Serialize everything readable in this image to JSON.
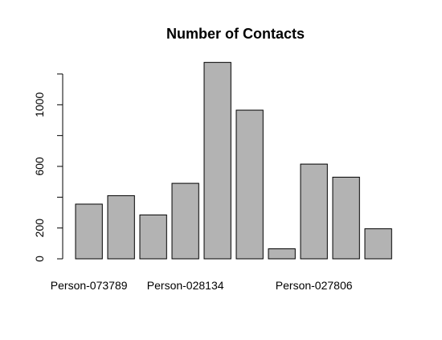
{
  "chart_data": {
    "type": "bar",
    "title": "Number of Contacts",
    "xlabel": "",
    "ylabel": "",
    "categories": [
      "Person-073789",
      "",
      "",
      "Person-028134",
      "",
      "",
      "",
      "Person-027806",
      "",
      ""
    ],
    "values": [
      355,
      410,
      285,
      490,
      1275,
      965,
      65,
      615,
      530,
      195
    ],
    "y_ticks": [
      0,
      200,
      400,
      600,
      800,
      1000,
      1200
    ],
    "y_tick_labels": [
      "0",
      "200",
      "",
      "600",
      "",
      "1000",
      ""
    ],
    "ylim": [
      0,
      1200
    ],
    "bar_color": "#b3b3b3",
    "grid": false
  }
}
